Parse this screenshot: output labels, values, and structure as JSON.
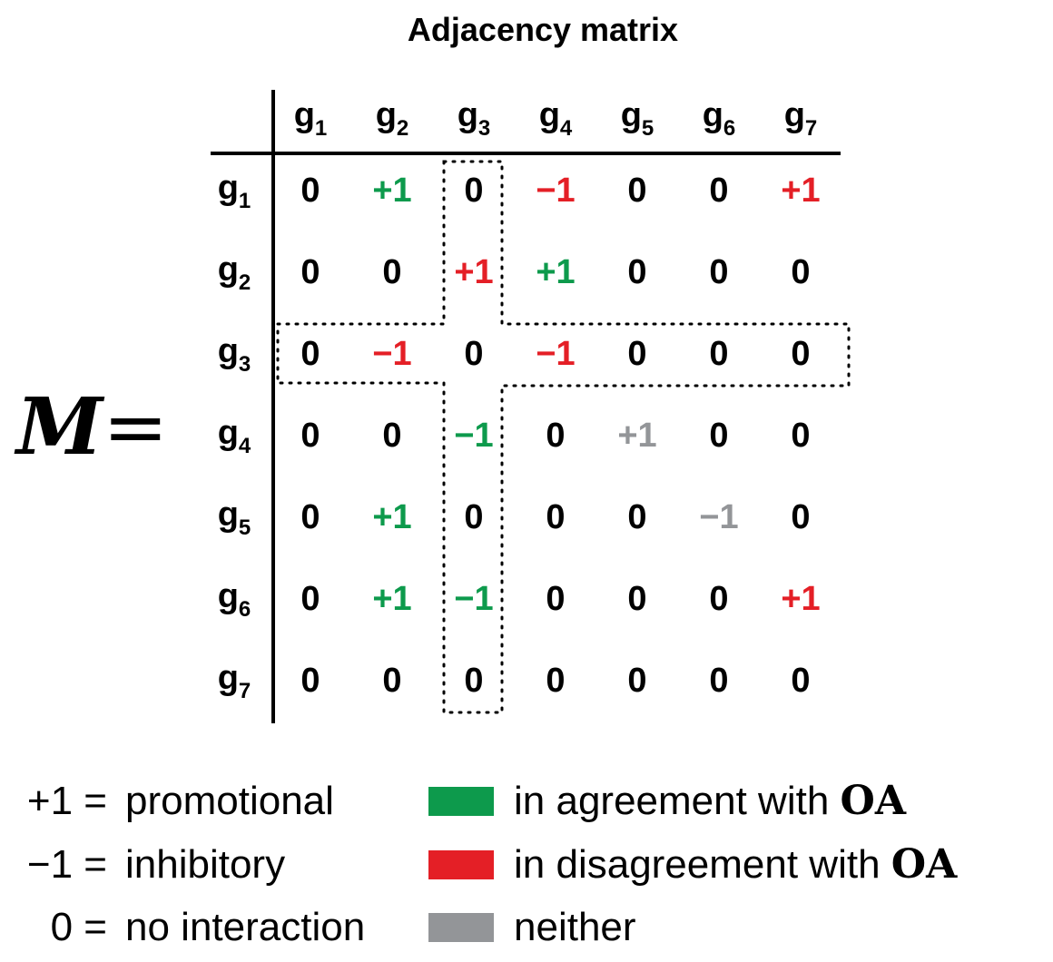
{
  "title": "Adjacency matrix",
  "matrix_label": {
    "symbol": "M",
    "equals": "="
  },
  "gene_letter": "g",
  "genes": [
    "1",
    "2",
    "3",
    "4",
    "5",
    "6",
    "7"
  ],
  "matrix": {
    "rows": [
      [
        {
          "v": "0",
          "c": "black"
        },
        {
          "v": "+1",
          "c": "green"
        },
        {
          "v": "0",
          "c": "black"
        },
        {
          "v": "−1",
          "c": "red"
        },
        {
          "v": "0",
          "c": "black"
        },
        {
          "v": "0",
          "c": "black"
        },
        {
          "v": "+1",
          "c": "red"
        }
      ],
      [
        {
          "v": "0",
          "c": "black"
        },
        {
          "v": "0",
          "c": "black"
        },
        {
          "v": "+1",
          "c": "red"
        },
        {
          "v": "+1",
          "c": "green"
        },
        {
          "v": "0",
          "c": "black"
        },
        {
          "v": "0",
          "c": "black"
        },
        {
          "v": "0",
          "c": "black"
        }
      ],
      [
        {
          "v": "0",
          "c": "black"
        },
        {
          "v": "−1",
          "c": "red"
        },
        {
          "v": "0",
          "c": "black"
        },
        {
          "v": "−1",
          "c": "red"
        },
        {
          "v": "0",
          "c": "black"
        },
        {
          "v": "0",
          "c": "black"
        },
        {
          "v": "0",
          "c": "black"
        }
      ],
      [
        {
          "v": "0",
          "c": "black"
        },
        {
          "v": "0",
          "c": "black"
        },
        {
          "v": "−1",
          "c": "green"
        },
        {
          "v": "0",
          "c": "black"
        },
        {
          "v": "+1",
          "c": "gray"
        },
        {
          "v": "0",
          "c": "black"
        },
        {
          "v": "0",
          "c": "black"
        }
      ],
      [
        {
          "v": "0",
          "c": "black"
        },
        {
          "v": "+1",
          "c": "green"
        },
        {
          "v": "0",
          "c": "black"
        },
        {
          "v": "0",
          "c": "black"
        },
        {
          "v": "0",
          "c": "black"
        },
        {
          "v": "−1",
          "c": "gray"
        },
        {
          "v": "0",
          "c": "black"
        }
      ],
      [
        {
          "v": "0",
          "c": "black"
        },
        {
          "v": "+1",
          "c": "green"
        },
        {
          "v": "−1",
          "c": "green"
        },
        {
          "v": "0",
          "c": "black"
        },
        {
          "v": "0",
          "c": "black"
        },
        {
          "v": "0",
          "c": "black"
        },
        {
          "v": "+1",
          "c": "red"
        }
      ],
      [
        {
          "v": "0",
          "c": "black"
        },
        {
          "v": "0",
          "c": "black"
        },
        {
          "v": "0",
          "c": "black"
        },
        {
          "v": "0",
          "c": "black"
        },
        {
          "v": "0",
          "c": "black"
        },
        {
          "v": "0",
          "c": "black"
        },
        {
          "v": "0",
          "c": "black"
        }
      ]
    ]
  },
  "colors": {
    "black": "#000000",
    "green": "#0d9a4c",
    "red": "#e41f26",
    "gray": "#939598"
  },
  "legend": {
    "values": [
      {
        "value": "+1 =",
        "meaning": "promotional"
      },
      {
        "value": "−1 =",
        "meaning": "inhibitory"
      },
      {
        "value": "0 =",
        "meaning": "no interaction"
      }
    ],
    "colors": [
      {
        "color": "green",
        "text": "in agreement with",
        "suffix": "OA"
      },
      {
        "color": "red",
        "text": "in disagreement with",
        "suffix": "OA"
      },
      {
        "color": "gray",
        "text": "neither",
        "suffix": ""
      }
    ]
  }
}
